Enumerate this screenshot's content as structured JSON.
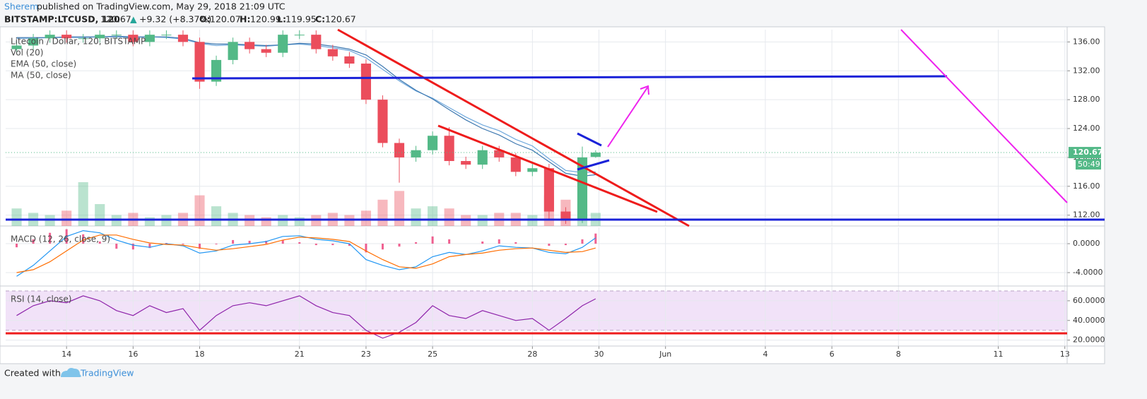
{
  "header": {
    "author": "Sherem",
    "published": "published on TradingView.com, May 29, 2018 21:09 UTC",
    "symbol": "BITSTAMP:LTCUSD, 120",
    "price": "120.67",
    "arrow": "▲",
    "change": "+9.32 (+8.37%)",
    "o_label": "O:",
    "o": "120.07",
    "h_label": "H:",
    "h": "120.99",
    "l_label": "L:",
    "l": "119.95",
    "c_label": "C:",
    "c": "120.67"
  },
  "footer": {
    "created": "Created with",
    "brand": "TradingView"
  },
  "chart_data": {
    "type": "candlestick",
    "title": "Litecoin / Dollar, 120, BITSTAMP",
    "x": [
      12.5,
      13,
      13.5,
      14,
      14.5,
      15,
      15.5,
      16,
      16.5,
      17,
      17.5,
      18,
      18.5,
      19,
      19.5,
      20,
      20.5,
      21,
      21.5,
      22,
      22.5,
      23,
      23.5,
      24,
      24.5,
      25,
      25.5,
      26,
      26.5,
      27,
      27.5,
      28,
      28.5,
      29,
      29.5,
      29.9
    ],
    "open": [
      135,
      135.5,
      136.5,
      137,
      136.5,
      136.5,
      137,
      137,
      136,
      137,
      137,
      136,
      130.5,
      133.5,
      136,
      135,
      134.5,
      137,
      137,
      135,
      134,
      133,
      128,
      122,
      120,
      121,
      123,
      119.5,
      119,
      121,
      120,
      118,
      118.5,
      112.5,
      111.5,
      120.07
    ],
    "high": [
      136.1,
      137.1,
      137.6,
      137.6,
      137.1,
      137.6,
      137.6,
      137.6,
      137.6,
      137.6,
      137.6,
      136.6,
      134.1,
      136.6,
      136.6,
      135.6,
      137.6,
      137.6,
      137.6,
      135.6,
      134.6,
      133.6,
      128.6,
      122.6,
      121.6,
      123.6,
      124.2,
      120.1,
      121.6,
      121.6,
      120.6,
      119.1,
      119.1,
      113.1,
      121.5,
      120.99
    ],
    "low": [
      134.4,
      134.9,
      135.9,
      135.9,
      135.9,
      135.9,
      136.4,
      135.4,
      135.4,
      136.4,
      135.4,
      129.5,
      129.9,
      132.9,
      134.4,
      133.9,
      133.9,
      136.4,
      134.4,
      133.4,
      132.4,
      127.4,
      121.4,
      116.5,
      119.4,
      120.4,
      118.9,
      118.4,
      118.4,
      119.4,
      117.4,
      117.4,
      111.5,
      110.8,
      110.9,
      119.95
    ],
    "close": [
      135.5,
      136.5,
      137,
      136.5,
      136.5,
      137,
      137,
      136,
      137,
      137,
      136,
      130.5,
      133.5,
      136,
      135,
      134.5,
      137,
      137,
      135,
      134,
      133,
      128,
      122,
      120,
      121,
      123,
      119.5,
      119,
      121,
      120,
      118,
      118.5,
      112.5,
      111.5,
      120,
      120.67
    ],
    "up_color": "#53b987",
    "down_color": "#eb4d5c",
    "series": [
      {
        "name": "Vol (20)",
        "type": "volume",
        "values": [
          8,
          6,
          5,
          7,
          20,
          10,
          5,
          6,
          4,
          5,
          6,
          14,
          9,
          6,
          5,
          4,
          5,
          4,
          5,
          6,
          5,
          7,
          12,
          16,
          8,
          9,
          8,
          5,
          5,
          6,
          6,
          5,
          14,
          12,
          10,
          6
        ]
      },
      {
        "name": "EMA (50, close)",
        "color": "#6fa8dc",
        "values": [
          136.5,
          136.5,
          136.6,
          136.6,
          136.6,
          136.7,
          136.7,
          136.6,
          136.7,
          136.6,
          136.4,
          135.8,
          135.5,
          135.6,
          135.5,
          135.4,
          135.6,
          135.7,
          135.5,
          135.2,
          134.8,
          133.8,
          132.2,
          130.6,
          129.2,
          128.2,
          126.9,
          125.6,
          124.5,
          123.7,
          122.5,
          121.6,
          119.8,
          118.2,
          117.9,
          118.0
        ]
      },
      {
        "name": "MA (50, close)",
        "color": "#3d78b0",
        "values": [
          136.6,
          136.6,
          136.6,
          136.7,
          136.7,
          136.7,
          136.8,
          136.7,
          136.7,
          136.7,
          136.5,
          135.9,
          135.7,
          135.7,
          135.6,
          135.5,
          135.6,
          135.8,
          135.7,
          135.4,
          135.0,
          134.2,
          132.6,
          130.8,
          129.3,
          128.1,
          126.6,
          125.2,
          124.0,
          123.1,
          121.9,
          121.0,
          119.4,
          117.8,
          117.4,
          117.6
        ]
      }
    ],
    "ylim": [
      110.5,
      137.7
    ],
    "yticks": [
      {
        "value": 112,
        "label": "112.00"
      },
      {
        "value": 116,
        "label": "116.00"
      },
      {
        "value": 120,
        "label": "120.00"
      },
      {
        "value": 124,
        "label": "124.00"
      },
      {
        "value": 128,
        "label": "128.00"
      },
      {
        "value": 132,
        "label": "132.00"
      },
      {
        "value": 136,
        "label": "136.00"
      }
    ],
    "last_price": 120.67,
    "last_color": "#53b987",
    "countdown": "50:49",
    "xlim": [
      12.17,
      44.07
    ],
    "xticks": [
      14,
      16,
      18,
      21,
      23,
      25,
      28,
      30,
      {
        "value": 32,
        "label": "Jun"
      },
      {
        "value": 35,
        "label": "4"
      },
      {
        "value": 37,
        "label": "6"
      },
      {
        "value": 39,
        "label": "8"
      },
      {
        "value": 42,
        "label": "11"
      },
      {
        "value": 44,
        "label": "13"
      }
    ],
    "grid": true,
    "macd": {
      "title": "MACD (12, 26, close, 9)",
      "series": [
        {
          "type": "histogram",
          "color": "#e91e63",
          "values": [
            -0.5,
            0.6,
            1.5,
            2,
            1.3,
            0.3,
            -0.7,
            -0.8,
            -0.6,
            0.1,
            -0.1,
            -0.7,
            -0.1,
            0.5,
            0.4,
            0.4,
            0.5,
            0.2,
            -0.2,
            -0.2,
            -0.3,
            -1.2,
            -0.8,
            -0.4,
            0.2,
            1,
            0.6,
            0,
            0.3,
            0.6,
            0.2,
            0,
            -0.3,
            -0.2,
            0.6,
            1.4
          ]
        },
        {
          "type": "line",
          "color": "#2196f3",
          "values": [
            -4.5,
            -3,
            -1,
            1,
            1.8,
            1.5,
            0.5,
            -0.2,
            -0.5,
            0,
            -0.3,
            -1.3,
            -1,
            -0.2,
            0,
            0.3,
            1,
            1.1,
            0.6,
            0.4,
            0,
            -2.2,
            -3,
            -3.6,
            -3.2,
            -1.8,
            -1.2,
            -1.5,
            -1.0,
            -0.3,
            -0.5,
            -0.6,
            -1.2,
            -1.4,
            -0.5,
            0.8
          ]
        },
        {
          "type": "line",
          "color": "#ff6d00",
          "values": [
            -4,
            -3.6,
            -2.5,
            -1,
            0.5,
            1.2,
            1.2,
            0.6,
            0.1,
            -0.1,
            -0.2,
            -0.6,
            -0.9,
            -0.7,
            -0.4,
            -0.1,
            0.5,
            0.9,
            0.8,
            0.6,
            0.3,
            -1,
            -2.2,
            -3.2,
            -3.4,
            -2.8,
            -1.8,
            -1.5,
            -1.3,
            -0.9,
            -0.7,
            -0.6,
            -0.9,
            -1.2,
            -1.1,
            -0.6
          ]
        }
      ],
      "ylim": [
        -5.85,
        2.25
      ],
      "yticks": [
        {
          "value": -4,
          "label": "-4.0000"
        },
        {
          "value": 0,
          "label": "0.0000"
        }
      ]
    },
    "rsi": {
      "title": "RSI (14, close)",
      "series": [
        {
          "type": "line",
          "color": "#8e24aa",
          "values": [
            45,
            55,
            60,
            58,
            65,
            60,
            50,
            45,
            55,
            48,
            52,
            30,
            45,
            55,
            58,
            55,
            60,
            65,
            55,
            48,
            45,
            30,
            22,
            28,
            38,
            55,
            45,
            42,
            50,
            45,
            40,
            42,
            30,
            42,
            55,
            62
          ]
        }
      ],
      "band": [
        30,
        70
      ],
      "band_color": "#f1e2f8",
      "ylim": [
        14,
        75
      ],
      "yticks": [
        {
          "value": 20,
          "label": "20.0000"
        },
        {
          "value": 40,
          "label": "40.0000"
        },
        {
          "value": 60,
          "label": "60.0000"
        }
      ]
    }
  }
}
